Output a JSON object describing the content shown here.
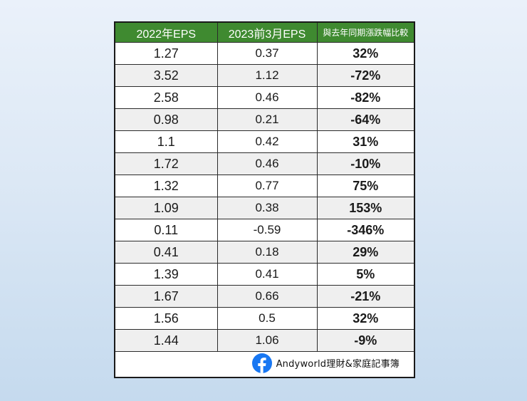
{
  "table": {
    "headers": [
      "2022年EPS",
      "2023前3月EPS",
      "與去年同期漲跌幅比較"
    ],
    "rows": [
      [
        "1.27",
        "0.37",
        "32%"
      ],
      [
        "3.52",
        "1.12",
        "-72%"
      ],
      [
        "2.58",
        "0.46",
        "-82%"
      ],
      [
        "0.98",
        "0.21",
        "-64%"
      ],
      [
        "1.1",
        "0.42",
        "31%"
      ],
      [
        "1.72",
        "0.46",
        "-10%"
      ],
      [
        "1.32",
        "0.77",
        "75%"
      ],
      [
        "1.09",
        "0.38",
        "153%"
      ],
      [
        "0.11",
        "-0.59",
        "-346%"
      ],
      [
        "0.41",
        "0.18",
        "29%"
      ],
      [
        "1.39",
        "0.41",
        "5%"
      ],
      [
        "1.67",
        "0.66",
        "-21%"
      ],
      [
        "1.56",
        "0.5",
        "32%"
      ],
      [
        "1.44",
        "1.06",
        "-9%"
      ]
    ]
  },
  "footer": {
    "icon": "facebook-icon",
    "brand": "Andyworld理財&家庭記事簿"
  },
  "colors": {
    "header_bg": "#3f8a30",
    "header_text": "#ffffff",
    "stripe": "#efefef",
    "facebook_blue": "#1877f2"
  }
}
